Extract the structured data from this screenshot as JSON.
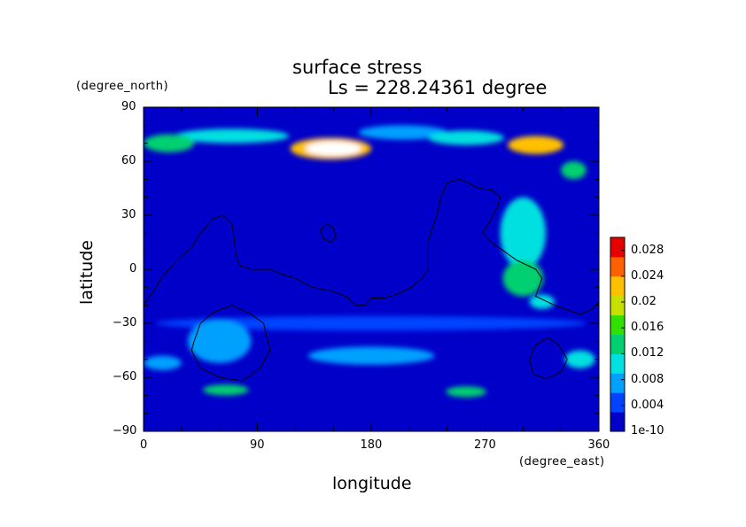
{
  "chart_data": {
    "type": "heatmap",
    "title": "surface stress",
    "subtitle": "Ls = 228.24361 degree",
    "xlabel": "longitude",
    "ylabel": "latitude",
    "x_units": "(degree_east)",
    "y_units": "(degree_north)",
    "xlim": [
      0,
      360
    ],
    "ylim": [
      -90,
      90
    ],
    "x_ticks": [
      0,
      90,
      180,
      270,
      360
    ],
    "y_ticks": [
      -90,
      -60,
      -30,
      0,
      30,
      60,
      90
    ],
    "x_tick_labels": [
      "0",
      "90",
      "180",
      "270",
      "360"
    ],
    "y_tick_labels": [
      "−90",
      "−60",
      "−30",
      "0",
      "30",
      "60",
      "90"
    ],
    "colorbar": {
      "min": 0,
      "max": 0.03,
      "tick_values": [
        0,
        0.004,
        0.008,
        0.012,
        0.016,
        0.02,
        0.024,
        0.028
      ],
      "tick_labels": [
        "1e-10",
        "0.004",
        "0.008",
        "0.012",
        "0.016",
        "0.02",
        "0.024",
        "0.028"
      ],
      "colormap": [
        "#0000c8",
        "#0044ff",
        "#00a0ff",
        "#00e0e0",
        "#00d070",
        "#30e000",
        "#c8e000",
        "#ffc000",
        "#ff6000",
        "#e80000"
      ]
    },
    "stress_features": [
      {
        "lon": 150,
        "lat": 67,
        "value": 0.034,
        "lon_width": 22,
        "lat_width": 4
      },
      {
        "lon": 148,
        "lat": 67,
        "value": 0.022,
        "lon_width": 32,
        "lat_width": 6
      },
      {
        "lon": 20,
        "lat": 70,
        "value": 0.012,
        "lon_width": 20,
        "lat_width": 5
      },
      {
        "lon": 70,
        "lat": 74,
        "value": 0.009,
        "lon_width": 45,
        "lat_width": 4
      },
      {
        "lon": 205,
        "lat": 76,
        "value": 0.008,
        "lon_width": 35,
        "lat_width": 4
      },
      {
        "lon": 255,
        "lat": 73,
        "value": 0.009,
        "lon_width": 30,
        "lat_width": 4
      },
      {
        "lon": 310,
        "lat": 69,
        "value": 0.021,
        "lon_width": 22,
        "lat_width": 5
      },
      {
        "lon": 340,
        "lat": 55,
        "value": 0.012,
        "lon_width": 10,
        "lat_width": 5
      },
      {
        "lon": 300,
        "lat": 20,
        "value": 0.011,
        "lon_width": 18,
        "lat_width": 20
      },
      {
        "lon": 300,
        "lat": -5,
        "value": 0.013,
        "lon_width": 16,
        "lat_width": 10
      },
      {
        "lon": 315,
        "lat": -18,
        "value": 0.011,
        "lon_width": 10,
        "lat_width": 4
      },
      {
        "lon": 60,
        "lat": -40,
        "value": 0.008,
        "lon_width": 25,
        "lat_width": 12
      },
      {
        "lon": 15,
        "lat": -52,
        "value": 0.008,
        "lon_width": 15,
        "lat_width": 4
      },
      {
        "lon": 65,
        "lat": -67,
        "value": 0.012,
        "lon_width": 18,
        "lat_width": 3
      },
      {
        "lon": 255,
        "lat": -68,
        "value": 0.012,
        "lon_width": 16,
        "lat_width": 3
      },
      {
        "lon": 345,
        "lat": -50,
        "value": 0.009,
        "lon_width": 12,
        "lat_width": 5
      },
      {
        "lon": 180,
        "lat": -48,
        "value": 0.007,
        "lon_width": 50,
        "lat_width": 5
      },
      {
        "lon": 180,
        "lat": -30,
        "value": 0.005,
        "lon_width": 170,
        "lat_width": 4
      }
    ],
    "topography_contours": [
      {
        "points": [
          [
            0,
            -20
          ],
          [
            8,
            -12
          ],
          [
            14,
            -5
          ],
          [
            20,
            0
          ],
          [
            28,
            6
          ],
          [
            38,
            12
          ],
          [
            45,
            20
          ],
          [
            55,
            28
          ],
          [
            63,
            30
          ],
          [
            70,
            25
          ],
          [
            72,
            15
          ],
          [
            73,
            8
          ],
          [
            76,
            2
          ],
          [
            85,
            0
          ],
          [
            100,
            0
          ],
          [
            110,
            -3
          ],
          [
            120,
            -5
          ],
          [
            133,
            -10
          ],
          [
            148,
            -12
          ],
          [
            160,
            -15
          ],
          [
            168,
            -20
          ],
          [
            175,
            -20
          ],
          [
            180,
            -16
          ],
          [
            190,
            -16
          ],
          [
            200,
            -14
          ],
          [
            212,
            -10
          ],
          [
            220,
            -5
          ],
          [
            225,
            0
          ],
          [
            225,
            15
          ],
          [
            228,
            22
          ],
          [
            232,
            30
          ],
          [
            235,
            40
          ],
          [
            240,
            48
          ],
          [
            250,
            50
          ],
          [
            265,
            45
          ],
          [
            275,
            44
          ],
          [
            282,
            40
          ],
          [
            280,
            35
          ],
          [
            275,
            28
          ],
          [
            268,
            20
          ],
          [
            275,
            15
          ],
          [
            285,
            10
          ],
          [
            295,
            5
          ],
          [
            310,
            0
          ],
          [
            315,
            -5
          ],
          [
            310,
            -15
          ],
          [
            325,
            -20
          ],
          [
            345,
            -25
          ],
          [
            355,
            -22
          ],
          [
            360,
            -18
          ]
        ]
      },
      {
        "points": [
          [
            140,
            22
          ],
          [
            145,
            25
          ],
          [
            150,
            23
          ],
          [
            152,
            18
          ],
          [
            148,
            15
          ],
          [
            142,
            17
          ],
          [
            140,
            22
          ]
        ]
      },
      {
        "points": [
          [
            40,
            -40
          ],
          [
            45,
            -30
          ],
          [
            55,
            -24
          ],
          [
            70,
            -20
          ],
          [
            85,
            -25
          ],
          [
            95,
            -30
          ],
          [
            100,
            -45
          ],
          [
            92,
            -55
          ],
          [
            78,
            -62
          ],
          [
            60,
            -60
          ],
          [
            45,
            -55
          ],
          [
            38,
            -45
          ],
          [
            40,
            -40
          ]
        ]
      },
      {
        "points": [
          [
            305,
            -50
          ],
          [
            310,
            -42
          ],
          [
            320,
            -38
          ],
          [
            328,
            -42
          ],
          [
            335,
            -50
          ],
          [
            330,
            -57
          ],
          [
            318,
            -61
          ],
          [
            308,
            -58
          ],
          [
            305,
            -50
          ]
        ]
      }
    ]
  }
}
